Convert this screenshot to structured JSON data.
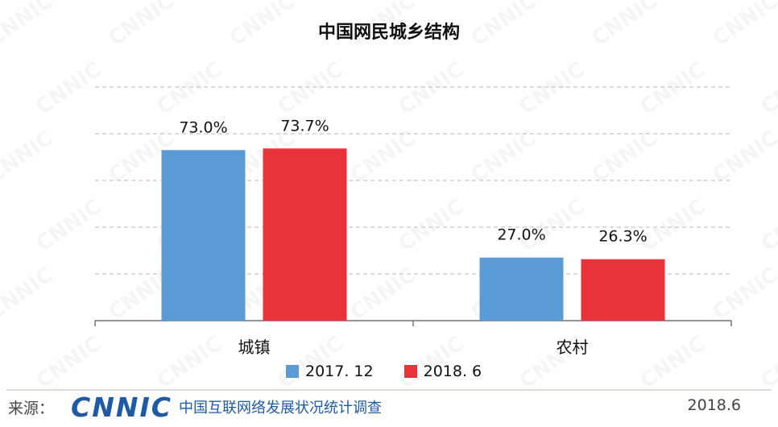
{
  "chart_data": {
    "type": "bar",
    "title": "中国网民城乡结构",
    "categories": [
      "城镇",
      "农村"
    ],
    "series": [
      {
        "name": "2017. 12",
        "values": [
          73.0,
          27.0
        ],
        "labels": [
          "73.0%",
          "27.0%"
        ],
        "color": "#5b9bd5"
      },
      {
        "name": "2018. 6",
        "values": [
          73.7,
          26.3
        ],
        "labels": [
          "73.7%",
          "26.3%"
        ],
        "color": "#e8333a"
      }
    ],
    "ylim": [
      0,
      100
    ],
    "grid": true,
    "legend_position": "bottom"
  },
  "watermark_text": "CNNIC",
  "footer": {
    "source_label": "来源：",
    "logo_text": "CNNIC",
    "org_name": "中国互联网络发展状况统计调查",
    "date": "2018.6"
  }
}
